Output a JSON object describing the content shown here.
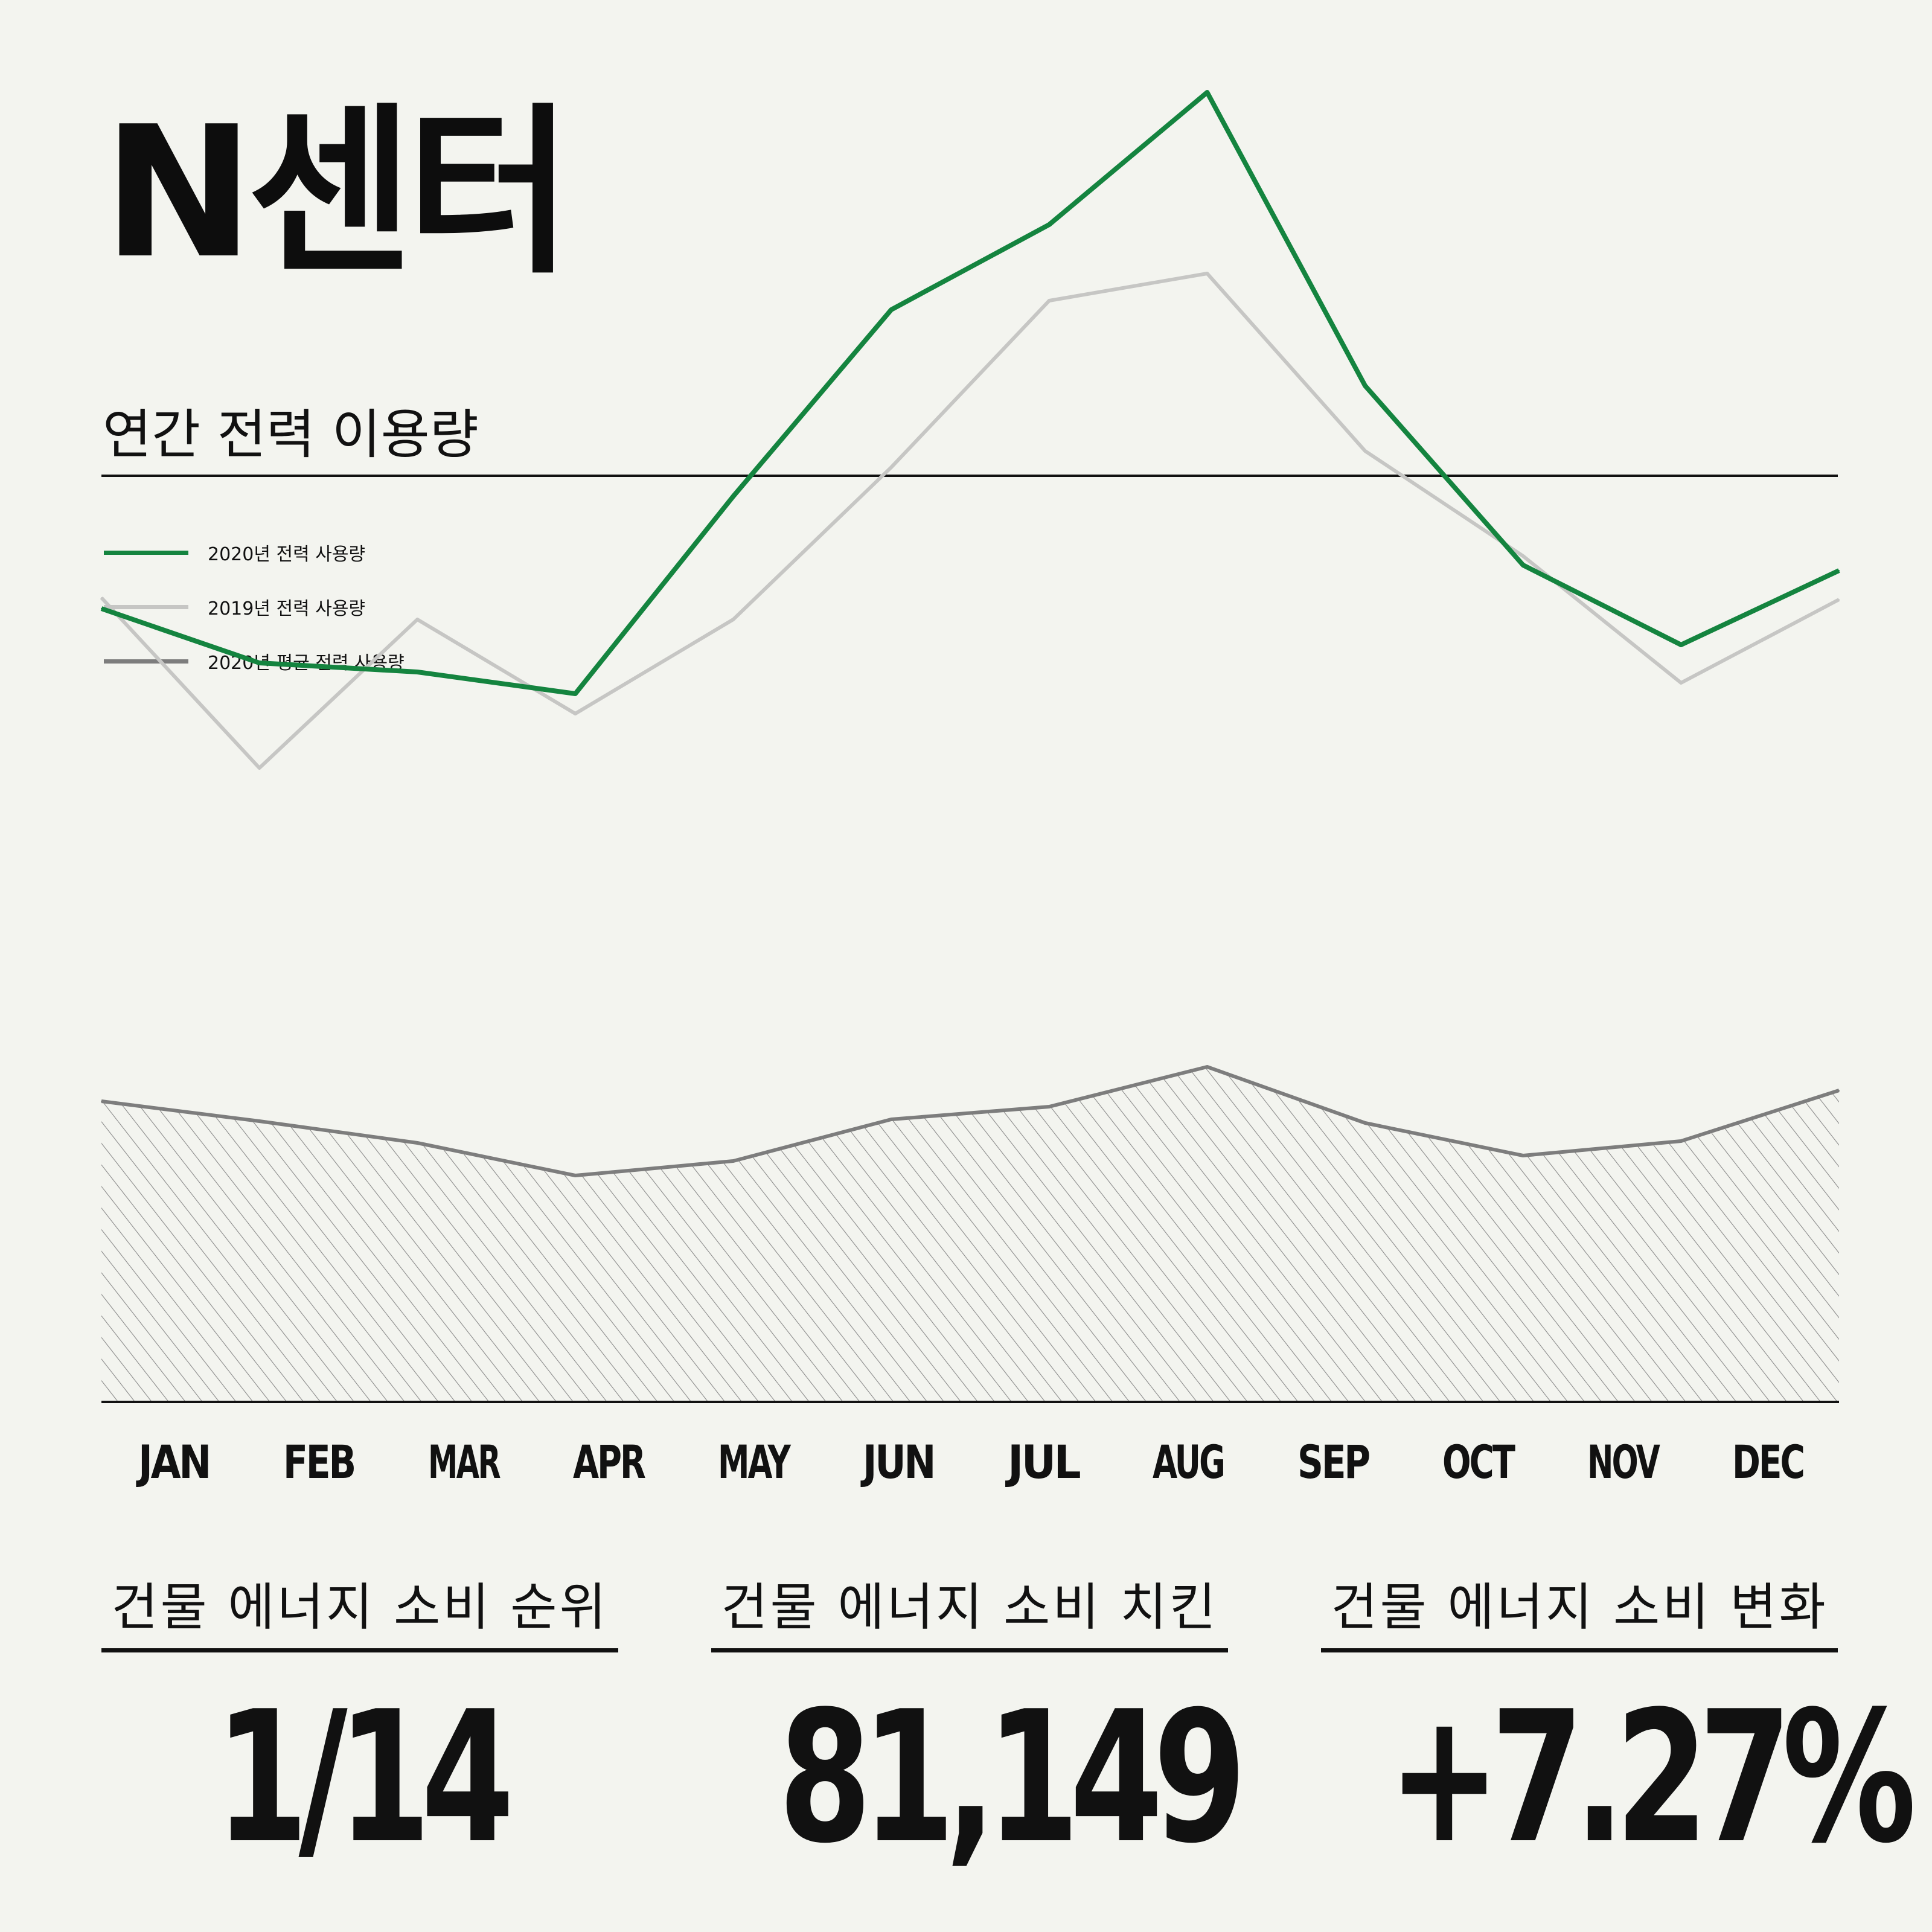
{
  "header": {
    "title": "N센터"
  },
  "section": {
    "title": "연간 전력 이용량"
  },
  "legend": [
    {
      "label": "2020년 전력 사용량",
      "color": "#14843f"
    },
    {
      "label": "2019년 전력 사용량",
      "color": "#c6c6c4"
    },
    {
      "label": "2020년 평균 전력 사용량",
      "color": "#7d7d7d"
    }
  ],
  "chart_data": {
    "type": "line",
    "categories": [
      "JAN",
      "FEB",
      "MAR",
      "APR",
      "MAY",
      "JUN",
      "JUL",
      "AUG",
      "SEP",
      "OCT",
      "NOV",
      "DEC"
    ],
    "series": [
      {
        "name": "2020년 전력 사용량",
        "color": "#14843f",
        "values": [
          43.8,
          40.8,
          40.3,
          39.1,
          50.0,
          60.3,
          65.0,
          72.3,
          56.1,
          46.2,
          41.8,
          45.9
        ]
      },
      {
        "name": "2019년 전력 사용량",
        "color": "#c6c6c4",
        "values": [
          44.4,
          35.0,
          43.2,
          38.0,
          43.2,
          51.6,
          60.8,
          62.3,
          52.5,
          46.7,
          39.7,
          44.3
        ]
      },
      {
        "name": "2020년 평균 전력 사용량",
        "color": "#7d7d7d",
        "fill": "hatched",
        "values": [
          16.6,
          15.5,
          14.3,
          12.5,
          13.3,
          15.6,
          16.3,
          18.5,
          15.4,
          13.6,
          14.4,
          17.2
        ]
      }
    ],
    "ylim": [
      0,
      80
    ],
    "grid": false,
    "legend_position": "top-left",
    "xlabel": "",
    "ylabel": ""
  },
  "stats": [
    {
      "label": "건물 에너지 소비 순위",
      "value": "1/14"
    },
    {
      "label": "건물 에너지 소비 치킨",
      "value": "81,149"
    },
    {
      "label": "건물 에너지 소비 변화",
      "value": "+7.27%"
    }
  ]
}
